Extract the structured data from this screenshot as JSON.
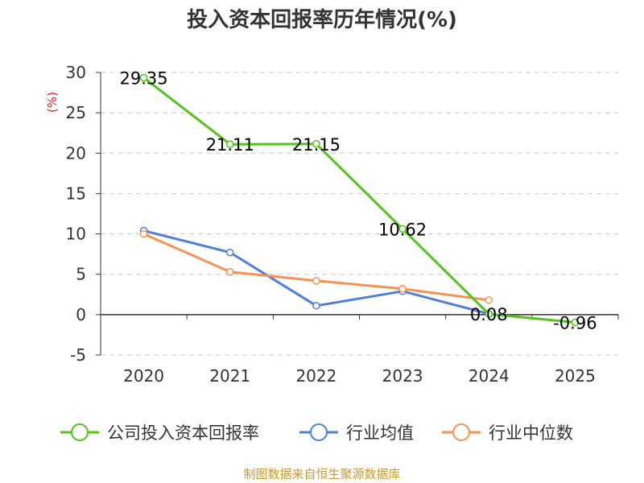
{
  "chart_data": {
    "type": "line",
    "title": "投入资本回报率历年情况(%)",
    "ylabel": "(%)",
    "categories": [
      "2020",
      "2021",
      "2022",
      "2023",
      "2024",
      "2025"
    ],
    "ylim": [
      -5,
      30
    ],
    "yticks": [
      30,
      25,
      20,
      15,
      10,
      5,
      0,
      -5
    ],
    "grid": true,
    "legend_position": "bottom",
    "series": [
      {
        "name": "公司投入资本回报率",
        "color": "#52c41a",
        "values": [
          29.35,
          21.11,
          21.15,
          10.62,
          0.08,
          -0.96
        ],
        "labels": [
          "29.35",
          "21.11",
          "21.15",
          "10.62",
          "0.08",
          "-0.96"
        ]
      },
      {
        "name": "行业均值",
        "color": "#4e80d9",
        "values": [
          10.4,
          7.7,
          1.1,
          2.9,
          0.1,
          null
        ]
      },
      {
        "name": "行业中位数",
        "color": "#f79352",
        "values": [
          10.0,
          5.3,
          4.2,
          3.2,
          1.8,
          null
        ]
      }
    ],
    "source": "制图数据来自恒生聚源数据库",
    "source_color": "#c9992a",
    "ylabel_color": "#e02020"
  }
}
